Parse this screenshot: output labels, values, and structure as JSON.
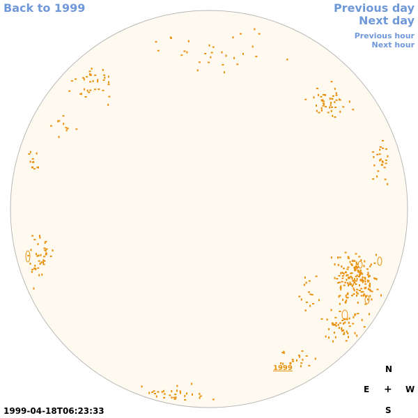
{
  "nav": {
    "back_label": "Back to 1999",
    "prev_day_label": "Previous day",
    "next_day_label": "Next day",
    "prev_hour_label": "Previous hour",
    "next_hour_label": "Next hour"
  },
  "map": {
    "center_link_label": "1999",
    "disk_color": "#fffaf0",
    "rim_color": "#b8b8b8",
    "mark_color": "#e8900c"
  },
  "compass": {
    "north": "N",
    "east": "E",
    "center": "+",
    "west": "W",
    "south": "S"
  },
  "timestamp": "1999-04-18T06:23:33"
}
